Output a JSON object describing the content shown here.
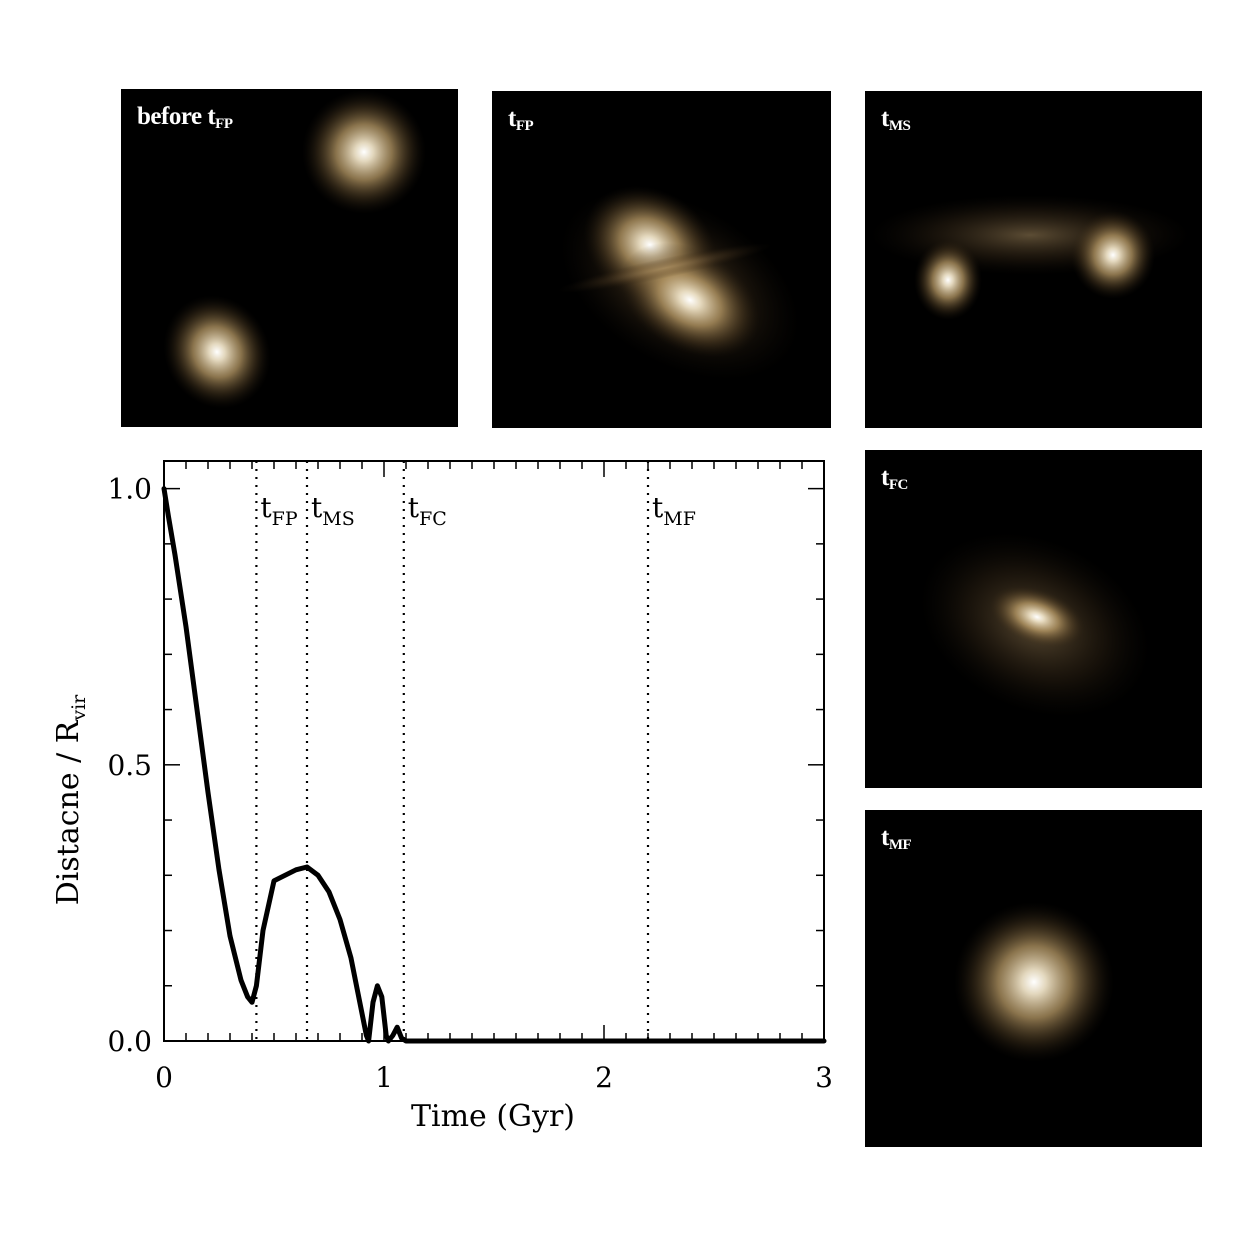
{
  "panels": [
    {
      "id": "before",
      "label_main": "before t",
      "label_sub": "FP"
    },
    {
      "id": "fp",
      "label_main": "t",
      "label_sub": "FP"
    },
    {
      "id": "ms",
      "label_main": "t",
      "label_sub": "MS"
    },
    {
      "id": "fc",
      "label_main": "t",
      "label_sub": "FC"
    },
    {
      "id": "mf",
      "label_main": "t",
      "label_sub": "MF"
    }
  ],
  "colors": {
    "galaxy": "#c9b183",
    "line": "#000000",
    "background": "#000000"
  },
  "chart_data": {
    "type": "line",
    "xlabel": "Time (Gyr)",
    "ylabel_main": "Distacne / R",
    "ylabel_sub": "vir",
    "xlim": [
      0,
      3
    ],
    "ylim": [
      0,
      1.05
    ],
    "xticks": [
      0,
      1,
      2,
      3
    ],
    "xtick_labels": [
      "0",
      "1",
      "2",
      "3"
    ],
    "yticks": [
      0.0,
      0.5,
      1.0
    ],
    "ytick_labels": [
      "0.0",
      "0.5",
      "1.0"
    ],
    "grid": false,
    "series": [
      {
        "x": [
          0.0,
          0.02,
          0.05,
          0.1,
          0.15,
          0.2,
          0.25,
          0.3,
          0.35,
          0.38,
          0.4,
          0.42,
          0.45,
          0.5,
          0.55,
          0.6,
          0.65,
          0.7,
          0.75,
          0.8,
          0.85,
          0.88,
          0.9,
          0.92,
          0.93,
          0.95,
          0.97,
          0.99,
          1.01,
          1.02,
          1.04,
          1.06,
          1.08,
          1.1,
          1.2,
          1.5,
          2.0,
          2.5,
          3.0
        ],
        "y": [
          1.0,
          0.95,
          0.88,
          0.75,
          0.6,
          0.45,
          0.31,
          0.19,
          0.11,
          0.08,
          0.07,
          0.1,
          0.2,
          0.29,
          0.3,
          0.31,
          0.315,
          0.3,
          0.27,
          0.22,
          0.15,
          0.09,
          0.05,
          0.01,
          0.0,
          0.07,
          0.1,
          0.08,
          0.01,
          0.0,
          0.01,
          0.025,
          0.005,
          0.0,
          0.0,
          0.0,
          0.0,
          0.0,
          0.0
        ]
      }
    ],
    "vlines": [
      {
        "x": 0.42,
        "label_main": "t",
        "label_sub": "FP"
      },
      {
        "x": 0.65,
        "label_main": "t",
        "label_sub": "MS"
      },
      {
        "x": 1.09,
        "label_main": "t",
        "label_sub": "FC"
      },
      {
        "x": 2.2,
        "label_main": "t",
        "label_sub": "MF"
      }
    ]
  }
}
